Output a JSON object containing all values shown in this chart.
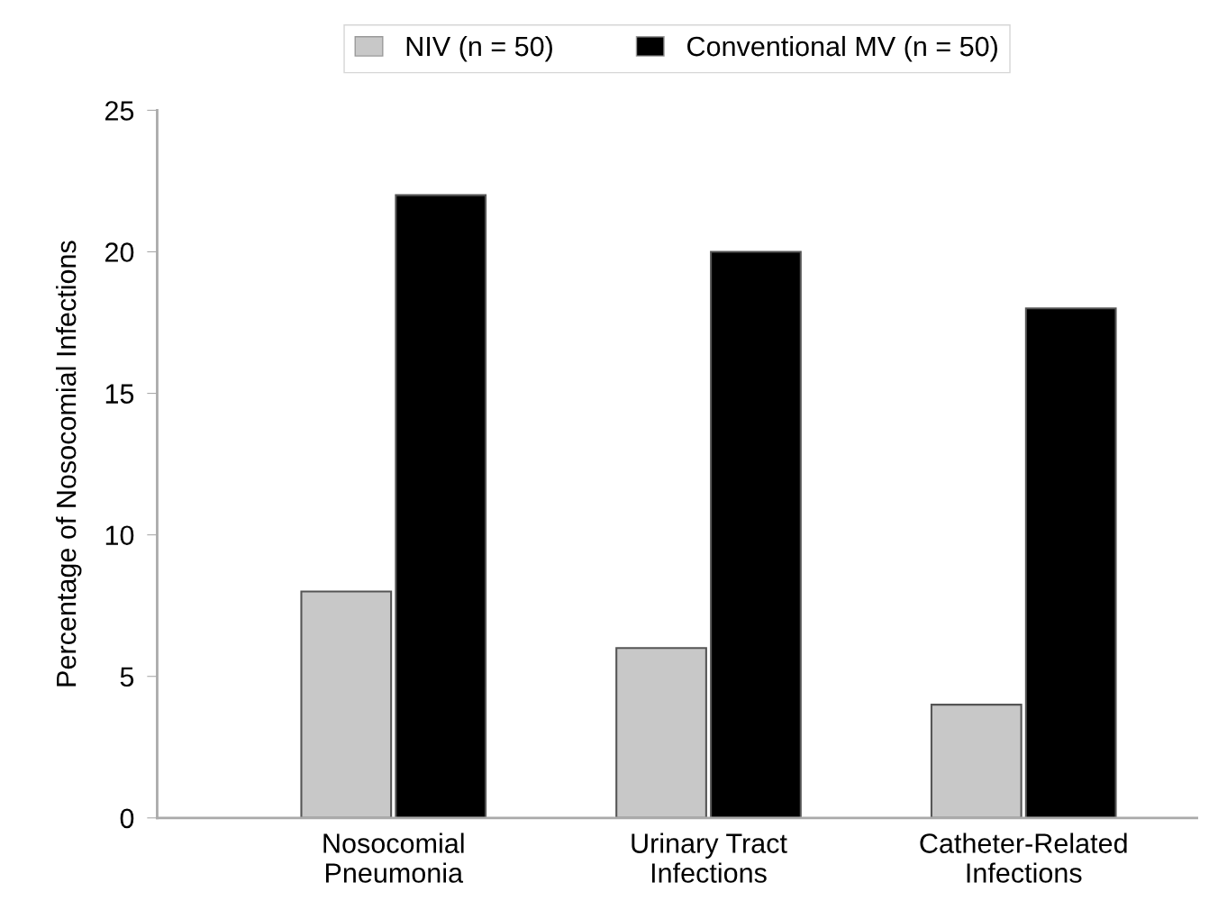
{
  "chart_data": {
    "type": "bar",
    "ylabel": "Percentage of Nosocomial Infections",
    "categories": [
      "Nosocomial\nPneumonia",
      "Urinary Tract\nInfections",
      "Catheter-Related\nInfections"
    ],
    "series": [
      {
        "name": "NIV (n = 50)",
        "color": "#c8c8c8",
        "values": [
          8,
          6,
          4
        ]
      },
      {
        "name": "Conventional MV (n = 50)",
        "color": "#000000",
        "values": [
          22,
          20,
          18
        ]
      }
    ],
    "ylim": [
      0,
      25
    ],
    "yticks": [
      0,
      5,
      10,
      15,
      20,
      25
    ],
    "grid": false,
    "legend": "top"
  }
}
